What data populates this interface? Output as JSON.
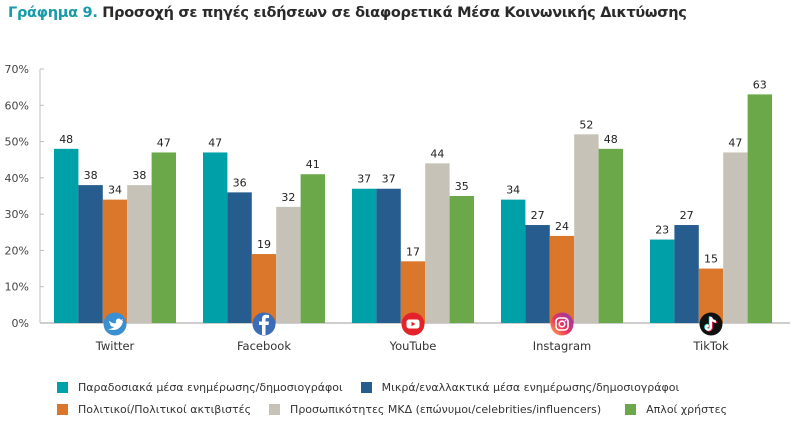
{
  "title": {
    "number": "Γράφημα 9.",
    "text": "Προσοχή σε πηγές ειδήσεων σε διαφορετικά Μέσα Κοινωνικής Δικτύωσης"
  },
  "chart_data": {
    "type": "bar",
    "title": "Γράφημα 9. Προσοχή σε πηγές ειδήσεων σε διαφορετικά Μέσα Κοινωνικής Δικτύωσης",
    "xlabel": "",
    "ylabel": "",
    "ylim": [
      0,
      70
    ],
    "yticks": [
      "0%",
      "10%",
      "20%",
      "30%",
      "40%",
      "50%",
      "60%",
      "70%"
    ],
    "grid": false,
    "legend_position": "bottom",
    "categories": [
      "Twitter",
      "Facebook",
      "YouTube",
      "Instagram",
      "TikTok"
    ],
    "category_icons": [
      "twitter-icon",
      "facebook-icon",
      "youtube-icon",
      "instagram-icon",
      "tiktok-icon"
    ],
    "series": [
      {
        "name": "Παραδοσιακά μέσα ενημέρωσης/δημοσιογράφοι",
        "color": "#00A0A8",
        "values": [
          48,
          47,
          37,
          34,
          23
        ]
      },
      {
        "name": "Μικρά/εναλλακτικά μέσα ενημέρωσης/δημοσιογράφοι",
        "color": "#275D8E",
        "values": [
          38,
          36,
          37,
          27,
          27
        ]
      },
      {
        "name": "Πολιτικοί/Πολιτικοί ακτιβιστές",
        "color": "#DA772A",
        "values": [
          34,
          19,
          17,
          24,
          15
        ]
      },
      {
        "name": "Προσωπικότητες ΜΚΔ (επώνυμοι/celebrities/influencers)",
        "color": "#C6C2B8",
        "values": [
          38,
          32,
          44,
          52,
          47
        ]
      },
      {
        "name": "Απλοί χρήστες",
        "color": "#6BA84A",
        "values": [
          47,
          41,
          35,
          48,
          63
        ]
      }
    ]
  },
  "legend": {
    "rows": [
      [
        0,
        1
      ],
      [
        2,
        3,
        4
      ]
    ]
  }
}
